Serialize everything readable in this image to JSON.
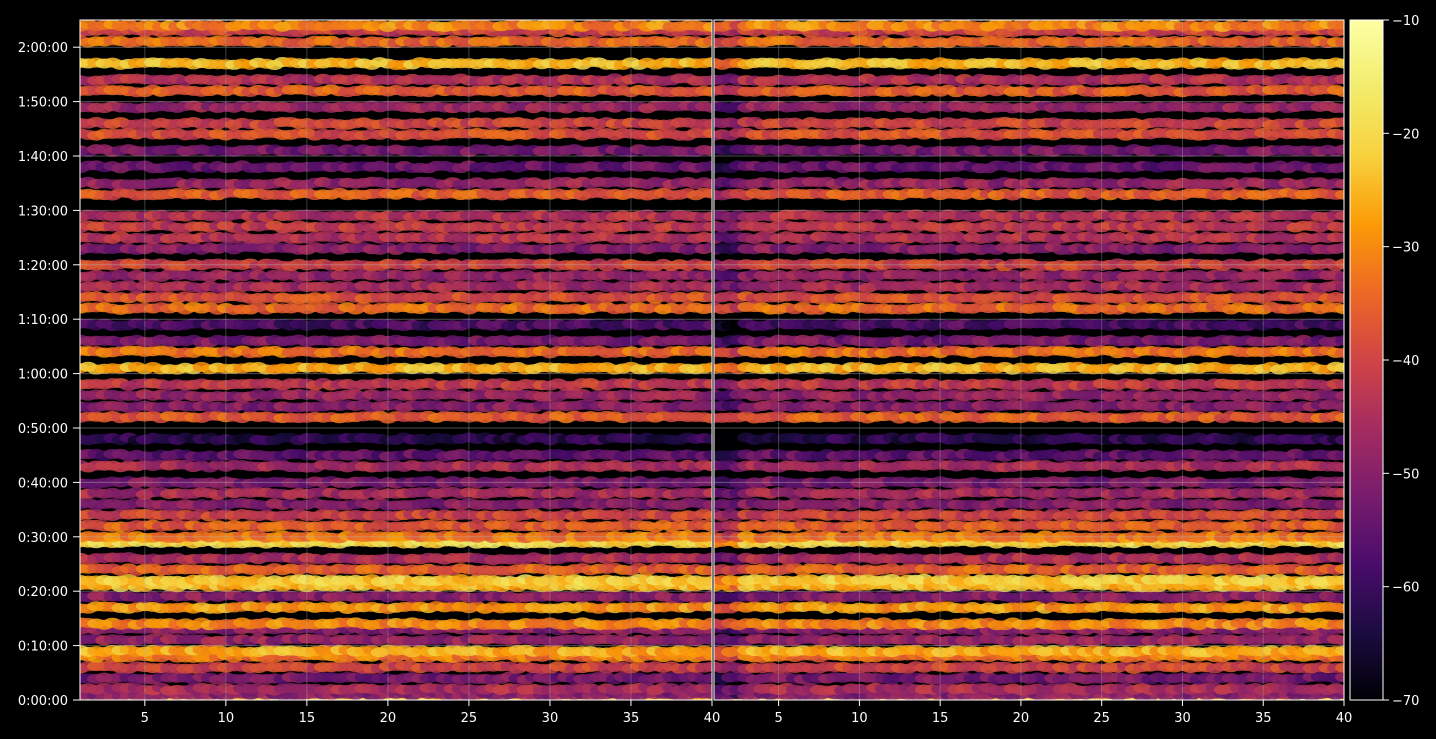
{
  "chart_data": {
    "type": "heatmap",
    "colormap": "inferno",
    "background": "#000000",
    "grid": true,
    "panels": [
      {
        "name": "",
        "xlim": [
          1,
          40
        ],
        "x_ticks": [
          "5",
          "10",
          "15",
          "20",
          "25",
          "30",
          "35",
          "40"
        ],
        "ylim_seconds": [
          0,
          7500
        ]
      },
      {
        "name": "",
        "xlim": [
          1,
          40
        ],
        "x_ticks": [
          "5",
          "10",
          "15",
          "20",
          "25",
          "30",
          "35",
          "40"
        ],
        "ylim_seconds": [
          0,
          7500
        ]
      }
    ],
    "y_ticks": [
      "0:00:00",
      "0:10:00",
      "0:20:00",
      "0:30:00",
      "0:40:00",
      "0:50:00",
      "1:00:00",
      "1:10:00",
      "1:20:00",
      "1:30:00",
      "1:40:00",
      "1:50:00",
      "2:00:00"
    ],
    "colorbar": {
      "range": [
        -70,
        -10
      ],
      "ticks": [
        "−70",
        "−60",
        "−50",
        "−40",
        "−30",
        "−20",
        "−10"
      ]
    },
    "row_values_dB": [
      {
        "t": "0:00:00",
        "v": -22
      },
      {
        "t": "0:01:00",
        "v": -50
      },
      {
        "t": "0:02:00",
        "v": -45
      },
      {
        "t": "0:04:00",
        "v": -52
      },
      {
        "t": "0:06:00",
        "v": -40
      },
      {
        "t": "0:08:00",
        "v": -32
      },
      {
        "t": "0:09:00",
        "v": -26
      },
      {
        "t": "0:11:00",
        "v": -48
      },
      {
        "t": "0:13:00",
        "v": -50
      },
      {
        "t": "0:14:00",
        "v": -30
      },
      {
        "t": "0:17:00",
        "v": -28
      },
      {
        "t": "0:19:00",
        "v": -50
      },
      {
        "t": "0:21:00",
        "v": -24
      },
      {
        "t": "0:22:00",
        "v": -22
      },
      {
        "t": "0:24:00",
        "v": -35
      },
      {
        "t": "0:26:00",
        "v": -45
      },
      {
        "t": "0:29:00",
        "v": -20
      },
      {
        "t": "0:30:00",
        "v": -32
      },
      {
        "t": "0:32:00",
        "v": -36
      },
      {
        "t": "0:34:00",
        "v": -40
      },
      {
        "t": "0:36:00",
        "v": -50
      },
      {
        "t": "0:38:00",
        "v": -46
      },
      {
        "t": "0:40:00",
        "v": -52
      },
      {
        "t": "0:43:00",
        "v": -45
      },
      {
        "t": "0:45:00",
        "v": -55
      },
      {
        "t": "0:48:00",
        "v": -62
      },
      {
        "t": "0:52:00",
        "v": -36
      },
      {
        "t": "0:54:00",
        "v": -50
      },
      {
        "t": "0:56:00",
        "v": -48
      },
      {
        "t": "0:58:00",
        "v": -42
      },
      {
        "t": "1:01:00",
        "v": -25
      },
      {
        "t": "1:04:00",
        "v": -33
      },
      {
        "t": "1:06:00",
        "v": -52
      },
      {
        "t": "1:09:00",
        "v": -58
      },
      {
        "t": "1:12:00",
        "v": -34
      },
      {
        "t": "1:14:00",
        "v": -38
      },
      {
        "t": "1:16:00",
        "v": -46
      },
      {
        "t": "1:18:00",
        "v": -48
      },
      {
        "t": "1:20:00",
        "v": -40
      },
      {
        "t": "1:23:00",
        "v": -50
      },
      {
        "t": "1:25:00",
        "v": -44
      },
      {
        "t": "1:27:00",
        "v": -42
      },
      {
        "t": "1:29:00",
        "v": -44
      },
      {
        "t": "1:33:00",
        "v": -36
      },
      {
        "t": "1:35:00",
        "v": -48
      },
      {
        "t": "1:38:00",
        "v": -54
      },
      {
        "t": "1:41:00",
        "v": -52
      },
      {
        "t": "1:44:00",
        "v": -38
      },
      {
        "t": "1:46:00",
        "v": -40
      },
      {
        "t": "1:49:00",
        "v": -48
      },
      {
        "t": "1:52:00",
        "v": -36
      },
      {
        "t": "1:54:00",
        "v": -44
      },
      {
        "t": "1:57:00",
        "v": -24
      },
      {
        "t": "2:01:00",
        "v": -34
      },
      {
        "t": "2:03:00",
        "v": -40
      },
      {
        "t": "2:04:00",
        "v": -30
      }
    ]
  }
}
